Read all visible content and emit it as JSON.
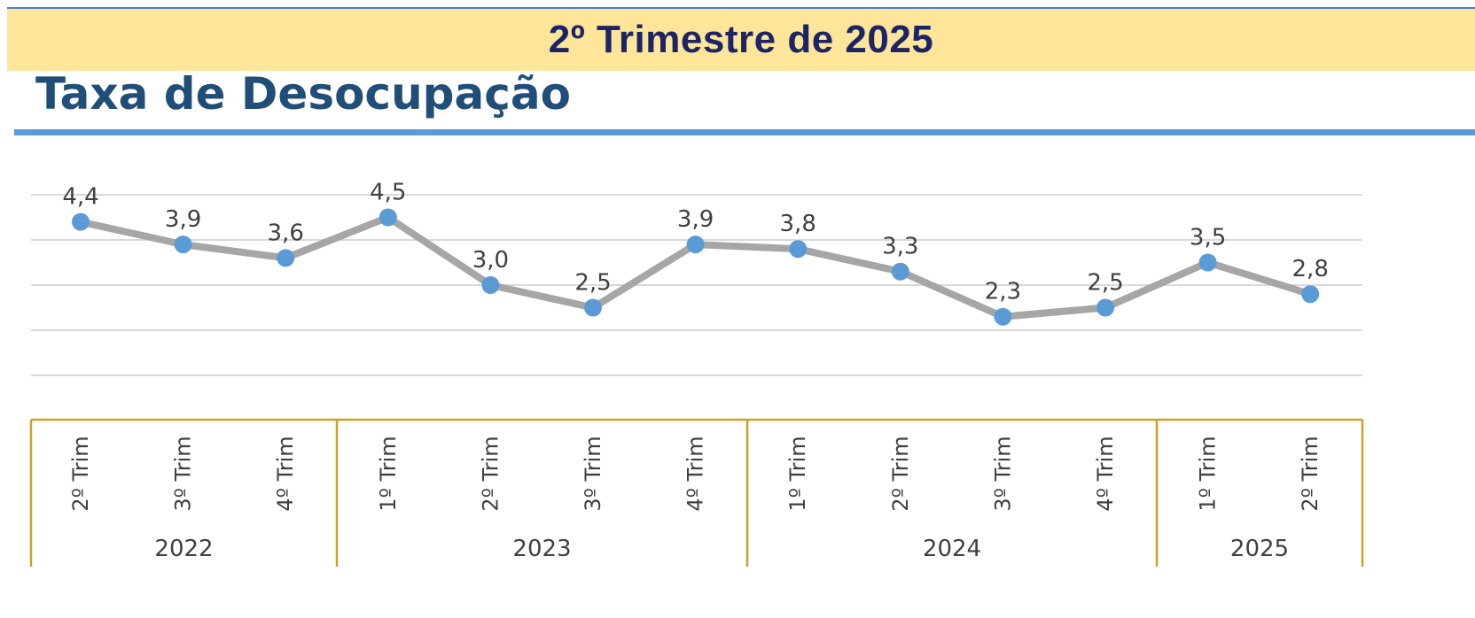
{
  "header": {
    "banner_title": "2º Trimestre de 2025",
    "page_title": "Taxa de Desocupação"
  },
  "colors": {
    "banner_bg": "#fde59a",
    "banner_text": "#1d2466",
    "title_text": "#1f4e79",
    "title_rule": "#5b9bd5",
    "line": "#a6a6a6",
    "marker": "#5b9bd5",
    "group_border": "#c9a227",
    "grid": "#d9d9d9",
    "label_text": "#404040"
  },
  "chart_data": {
    "type": "line",
    "title": "Taxa de Desocupação",
    "ylim": [
      0,
      5
    ],
    "grid": true,
    "categories": [
      {
        "group": "2022",
        "label": "2º Trim"
      },
      {
        "group": "2022",
        "label": "3º Trim"
      },
      {
        "group": "2022",
        "label": "4º Trim"
      },
      {
        "group": "2023",
        "label": "1º Trim"
      },
      {
        "group": "2023",
        "label": "2º Trim"
      },
      {
        "group": "2023",
        "label": "3º Trim"
      },
      {
        "group": "2023",
        "label": "4º Trim"
      },
      {
        "group": "2024",
        "label": "1º Trim"
      },
      {
        "group": "2024",
        "label": "2º Trim"
      },
      {
        "group": "2024",
        "label": "3º Trim"
      },
      {
        "group": "2024",
        "label": "4º Trim"
      },
      {
        "group": "2025",
        "label": "1º Trim"
      },
      {
        "group": "2025",
        "label": "2º Trim"
      }
    ],
    "groups": [
      "2022",
      "2023",
      "2024",
      "2025"
    ],
    "values": [
      4.4,
      3.9,
      3.6,
      4.5,
      3.0,
      2.5,
      3.9,
      3.8,
      3.3,
      2.3,
      2.5,
      3.5,
      2.8
    ],
    "value_labels": [
      "4,4",
      "3,9",
      "3,6",
      "4,5",
      "3,0",
      "2,5",
      "3,9",
      "3,8",
      "3,3",
      "2,3",
      "2,5",
      "3,5",
      "2,8"
    ]
  }
}
